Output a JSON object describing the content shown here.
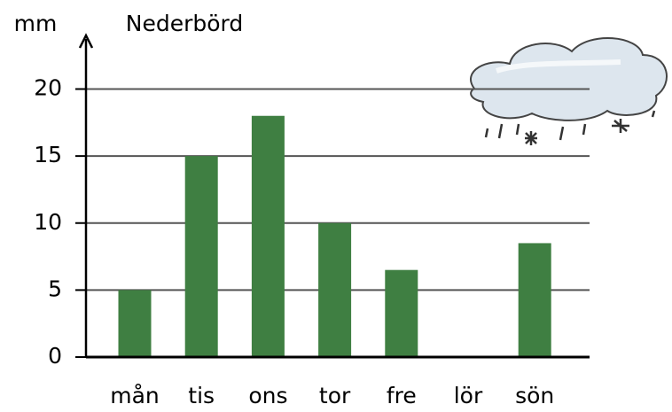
{
  "chart_data": {
    "type": "bar",
    "title": "Nederbörd",
    "y_axis_label": "mm",
    "categories": [
      "mån",
      "tis",
      "ons",
      "tor",
      "fre",
      "lör",
      "sön"
    ],
    "values": [
      5,
      15,
      18,
      10,
      6.5,
      0,
      8.5
    ],
    "color": "#3f7f42",
    "ylim": [
      0,
      24
    ],
    "yticks": [
      0,
      5,
      10,
      15,
      20
    ],
    "grid": true
  }
}
